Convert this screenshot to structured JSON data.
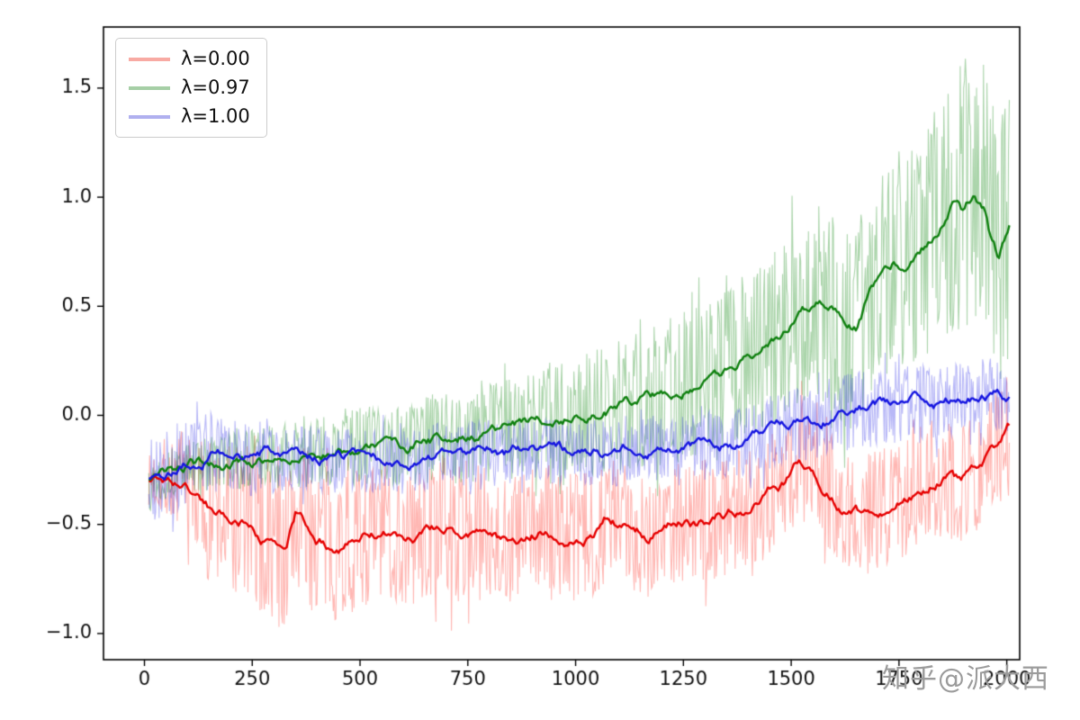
{
  "figure": {
    "background": "#ffffff"
  },
  "watermark": "知乎@派大西",
  "chart_data": {
    "type": "line",
    "title": "",
    "xlabel": "",
    "ylabel": "",
    "xlim": [
      -95,
      2030
    ],
    "ylim": [
      -1.12,
      1.78
    ],
    "xticks": [
      0,
      250,
      500,
      750,
      1000,
      1250,
      1500,
      1750,
      2000
    ],
    "yticks": [
      -1.0,
      -0.5,
      0.0,
      0.5,
      1.0,
      1.5
    ],
    "grid": false,
    "legend": {
      "position": "upper-left"
    },
    "series": [
      {
        "name": "λ=0.00",
        "line_color": "#e60000",
        "raw_color": "rgba(255,30,20,0.32)",
        "legend_color": "#f8aaa3",
        "seed": 7,
        "smoothed": [
          [
            0,
            -0.3
          ],
          [
            40,
            -0.29
          ],
          [
            80,
            -0.31
          ],
          [
            120,
            -0.36
          ],
          [
            160,
            -0.44
          ],
          [
            200,
            -0.47
          ],
          [
            240,
            -0.49
          ],
          [
            270,
            -0.55
          ],
          [
            300,
            -0.6
          ],
          [
            330,
            -0.62
          ],
          [
            350,
            -0.47
          ],
          [
            370,
            -0.5
          ],
          [
            400,
            -0.57
          ],
          [
            440,
            -0.6
          ],
          [
            480,
            -0.58
          ],
          [
            520,
            -0.55
          ],
          [
            560,
            -0.53
          ],
          [
            600,
            -0.58
          ],
          [
            640,
            -0.56
          ],
          [
            680,
            -0.52
          ],
          [
            720,
            -0.54
          ],
          [
            760,
            -0.55
          ],
          [
            800,
            -0.52
          ],
          [
            840,
            -0.57
          ],
          [
            880,
            -0.55
          ],
          [
            920,
            -0.52
          ],
          [
            960,
            -0.54
          ],
          [
            1000,
            -0.56
          ],
          [
            1040,
            -0.55
          ],
          [
            1070,
            -0.47
          ],
          [
            1100,
            -0.5
          ],
          [
            1140,
            -0.52
          ],
          [
            1170,
            -0.55
          ],
          [
            1200,
            -0.52
          ],
          [
            1240,
            -0.47
          ],
          [
            1280,
            -0.5
          ],
          [
            1320,
            -0.47
          ],
          [
            1360,
            -0.44
          ],
          [
            1400,
            -0.42
          ],
          [
            1440,
            -0.38
          ],
          [
            1480,
            -0.32
          ],
          [
            1520,
            -0.22
          ],
          [
            1550,
            -0.27
          ],
          [
            1580,
            -0.33
          ],
          [
            1620,
            -0.42
          ],
          [
            1660,
            -0.45
          ],
          [
            1700,
            -0.43
          ],
          [
            1740,
            -0.4
          ],
          [
            1780,
            -0.35
          ],
          [
            1820,
            -0.3
          ],
          [
            1860,
            -0.26
          ],
          [
            1890,
            -0.31
          ],
          [
            1920,
            -0.28
          ],
          [
            1950,
            -0.22
          ],
          [
            1980,
            -0.15
          ],
          [
            2005,
            -0.07
          ]
        ],
        "noise_envelope": [
          [
            0,
            0.1
          ],
          [
            100,
            0.24
          ],
          [
            200,
            0.36
          ],
          [
            300,
            0.38
          ],
          [
            500,
            0.32
          ],
          [
            800,
            0.31
          ],
          [
            1100,
            0.29
          ],
          [
            1400,
            0.28
          ],
          [
            1700,
            0.27
          ],
          [
            2005,
            0.3
          ]
        ]
      },
      {
        "name": "λ=0.97",
        "line_color": "#0f800f",
        "raw_color": "rgba(0,128,0,0.33)",
        "legend_color": "#a6cfa6",
        "seed": 13,
        "smoothed": [
          [
            0,
            -0.3
          ],
          [
            40,
            -0.28
          ],
          [
            80,
            -0.25
          ],
          [
            120,
            -0.23
          ],
          [
            160,
            -0.22
          ],
          [
            200,
            -0.21
          ],
          [
            250,
            -0.2
          ],
          [
            300,
            -0.19
          ],
          [
            350,
            -0.18
          ],
          [
            400,
            -0.17
          ],
          [
            450,
            -0.15
          ],
          [
            500,
            -0.14
          ],
          [
            550,
            -0.13
          ],
          [
            600,
            -0.14
          ],
          [
            650,
            -0.12
          ],
          [
            700,
            -0.1
          ],
          [
            750,
            -0.09
          ],
          [
            800,
            -0.08
          ],
          [
            850,
            -0.05
          ],
          [
            900,
            -0.03
          ],
          [
            950,
            -0.02
          ],
          [
            1000,
            0.0
          ],
          [
            1050,
            0.02
          ],
          [
            1100,
            0.04
          ],
          [
            1150,
            0.07
          ],
          [
            1200,
            0.1
          ],
          [
            1250,
            0.13
          ],
          [
            1300,
            0.17
          ],
          [
            1350,
            0.22
          ],
          [
            1400,
            0.28
          ],
          [
            1440,
            0.32
          ],
          [
            1480,
            0.38
          ],
          [
            1520,
            0.46
          ],
          [
            1560,
            0.52
          ],
          [
            1590,
            0.5
          ],
          [
            1620,
            0.42
          ],
          [
            1650,
            0.4
          ],
          [
            1680,
            0.55
          ],
          [
            1710,
            0.66
          ],
          [
            1740,
            0.7
          ],
          [
            1770,
            0.66
          ],
          [
            1800,
            0.74
          ],
          [
            1830,
            0.82
          ],
          [
            1860,
            0.92
          ],
          [
            1880,
            1.0
          ],
          [
            1900,
            0.94
          ],
          [
            1925,
            1.02
          ],
          [
            1950,
            0.95
          ],
          [
            1965,
            0.8
          ],
          [
            1980,
            0.73
          ],
          [
            1995,
            0.82
          ],
          [
            2005,
            0.87
          ]
        ],
        "noise_envelope": [
          [
            0,
            0.1
          ],
          [
            200,
            0.13
          ],
          [
            400,
            0.16
          ],
          [
            600,
            0.2
          ],
          [
            800,
            0.23
          ],
          [
            1000,
            0.28
          ],
          [
            1200,
            0.33
          ],
          [
            1400,
            0.38
          ],
          [
            1600,
            0.46
          ],
          [
            1800,
            0.55
          ],
          [
            2005,
            0.65
          ]
        ]
      },
      {
        "name": "λ=1.00",
        "line_color": "#1515e0",
        "raw_color": "rgba(40,40,230,0.33)",
        "legend_color": "#b0b0ef",
        "seed": 21,
        "smoothed": [
          [
            0,
            -0.3
          ],
          [
            40,
            -0.28
          ],
          [
            80,
            -0.23
          ],
          [
            120,
            -0.19
          ],
          [
            160,
            -0.17
          ],
          [
            200,
            -0.18
          ],
          [
            240,
            -0.2
          ],
          [
            280,
            -0.18
          ],
          [
            320,
            -0.2
          ],
          [
            360,
            -0.19
          ],
          [
            400,
            -0.2
          ],
          [
            440,
            -0.21
          ],
          [
            480,
            -0.2
          ],
          [
            520,
            -0.22
          ],
          [
            560,
            -0.21
          ],
          [
            600,
            -0.21
          ],
          [
            640,
            -0.2
          ],
          [
            680,
            -0.18
          ],
          [
            720,
            -0.19
          ],
          [
            760,
            -0.18
          ],
          [
            800,
            -0.17
          ],
          [
            840,
            -0.18
          ],
          [
            880,
            -0.16
          ],
          [
            920,
            -0.17
          ],
          [
            960,
            -0.17
          ],
          [
            1000,
            -0.18
          ],
          [
            1040,
            -0.17
          ],
          [
            1080,
            -0.18
          ],
          [
            1120,
            -0.17
          ],
          [
            1160,
            -0.16
          ],
          [
            1200,
            -0.15
          ],
          [
            1240,
            -0.14
          ],
          [
            1280,
            -0.15
          ],
          [
            1320,
            -0.13
          ],
          [
            1360,
            -0.13
          ],
          [
            1400,
            -0.12
          ],
          [
            1440,
            -0.09
          ],
          [
            1480,
            -0.06
          ],
          [
            1520,
            -0.04
          ],
          [
            1560,
            -0.02
          ],
          [
            1600,
            0.0
          ],
          [
            1640,
            0.02
          ],
          [
            1680,
            0.03
          ],
          [
            1720,
            0.04
          ],
          [
            1760,
            0.05
          ],
          [
            1800,
            0.06
          ],
          [
            1840,
            0.05
          ],
          [
            1880,
            0.07
          ],
          [
            1920,
            0.09
          ],
          [
            1960,
            0.1
          ],
          [
            2005,
            0.08
          ]
        ],
        "noise_envelope": [
          [
            0,
            0.22
          ],
          [
            150,
            0.19
          ],
          [
            400,
            0.15
          ],
          [
            800,
            0.15
          ],
          [
            1200,
            0.15
          ],
          [
            1600,
            0.18
          ],
          [
            2005,
            0.16
          ]
        ]
      }
    ]
  }
}
